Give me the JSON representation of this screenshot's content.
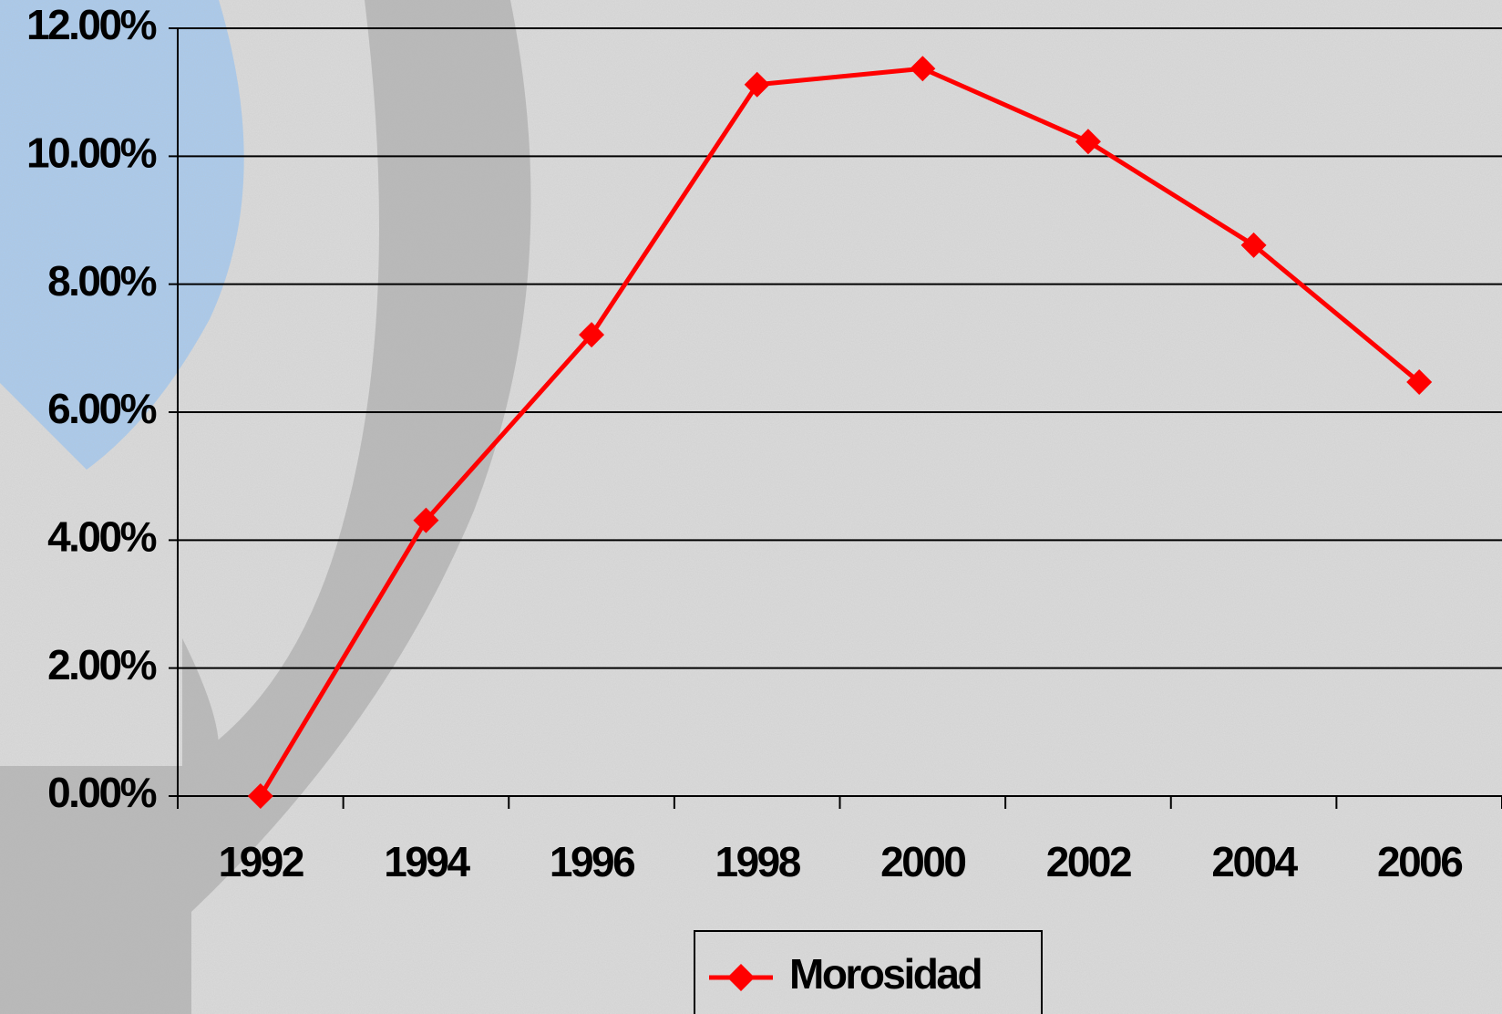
{
  "chart_data": {
    "type": "line",
    "categories": [
      "1992",
      "1994",
      "1996",
      "1998",
      "2000",
      "2002",
      "2004",
      "2006"
    ],
    "series": [
      {
        "name": "Morosidad",
        "color": "#ff0000",
        "values": [
          0,
          4.31,
          7.21,
          11.12,
          11.37,
          10.23,
          8.61,
          6.47
        ]
      }
    ],
    "ylim": [
      0,
      12
    ],
    "yticks": [
      {
        "value": 0,
        "label": "0.00%"
      },
      {
        "value": 2,
        "label": "2.00%"
      },
      {
        "value": 4,
        "label": "4.00%"
      },
      {
        "value": 6,
        "label": "6.00%"
      },
      {
        "value": 8,
        "label": "8.00%"
      },
      {
        "value": 10,
        "label": "10.00%"
      },
      {
        "value": 12,
        "label": "12.00%"
      }
    ],
    "grid": true,
    "legend": "bottom"
  }
}
